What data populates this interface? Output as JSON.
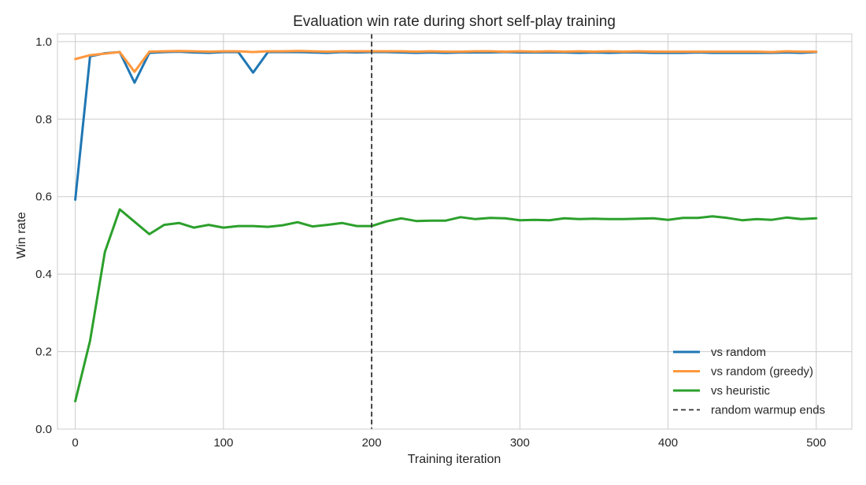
{
  "chart_data": {
    "type": "line",
    "title": "Evaluation win rate during short self-play training",
    "xlabel": "Training iteration",
    "ylabel": "Win rate",
    "xlim": [
      -12,
      524
    ],
    "ylim": [
      0.0,
      1.02
    ],
    "x_ticks": [
      0,
      100,
      200,
      300,
      400,
      500
    ],
    "y_ticks": [
      0.0,
      0.2,
      0.4,
      0.6,
      0.8,
      1.0
    ],
    "x_tick_labels": [
      "0",
      "100",
      "200",
      "300",
      "400",
      "500"
    ],
    "y_tick_labels": [
      "0.0",
      "0.2",
      "0.4",
      "0.6",
      "0.8",
      "1.0"
    ],
    "grid": true,
    "legend_position": "lower-right",
    "x": [
      0,
      10,
      20,
      30,
      40,
      50,
      60,
      70,
      80,
      90,
      100,
      110,
      120,
      130,
      140,
      150,
      160,
      170,
      180,
      190,
      200,
      210,
      220,
      230,
      240,
      250,
      260,
      270,
      280,
      290,
      300,
      310,
      320,
      330,
      340,
      350,
      360,
      370,
      380,
      390,
      400,
      410,
      420,
      430,
      440,
      450,
      460,
      470,
      480,
      490,
      500
    ],
    "series": [
      {
        "name": "vs random",
        "color": "#1f77b4",
        "values": [
          0.592,
          0.962,
          0.97,
          0.973,
          0.894,
          0.971,
          0.973,
          0.974,
          0.972,
          0.971,
          0.973,
          0.973,
          0.92,
          0.973,
          0.973,
          0.973,
          0.972,
          0.971,
          0.973,
          0.972,
          0.973,
          0.973,
          0.972,
          0.971,
          0.972,
          0.971,
          0.972,
          0.972,
          0.972,
          0.973,
          0.972,
          0.972,
          0.972,
          0.972,
          0.971,
          0.972,
          0.971,
          0.972,
          0.972,
          0.971,
          0.971,
          0.971,
          0.972,
          0.971,
          0.971,
          0.971,
          0.971,
          0.971,
          0.972,
          0.971,
          0.973
        ]
      },
      {
        "name": "vs random (greedy)",
        "color": "#ff983e",
        "values": [
          0.955,
          0.965,
          0.969,
          0.973,
          0.922,
          0.974,
          0.975,
          0.976,
          0.975,
          0.974,
          0.975,
          0.975,
          0.973,
          0.975,
          0.975,
          0.976,
          0.975,
          0.974,
          0.975,
          0.975,
          0.975,
          0.975,
          0.975,
          0.974,
          0.975,
          0.974,
          0.974,
          0.975,
          0.975,
          0.974,
          0.975,
          0.974,
          0.975,
          0.974,
          0.975,
          0.974,
          0.975,
          0.974,
          0.975,
          0.974,
          0.974,
          0.974,
          0.974,
          0.974,
          0.974,
          0.974,
          0.974,
          0.973,
          0.975,
          0.974,
          0.974
        ]
      },
      {
        "name": "vs heuristic",
        "color": "#2ca02c",
        "values": [
          0.072,
          0.228,
          0.457,
          0.567,
          0.535,
          0.503,
          0.527,
          0.532,
          0.52,
          0.527,
          0.52,
          0.524,
          0.524,
          0.522,
          0.526,
          0.534,
          0.523,
          0.527,
          0.532,
          0.524,
          0.524,
          0.536,
          0.544,
          0.537,
          0.538,
          0.538,
          0.547,
          0.542,
          0.545,
          0.544,
          0.539,
          0.54,
          0.539,
          0.544,
          0.542,
          0.543,
          0.542,
          0.542,
          0.543,
          0.544,
          0.54,
          0.545,
          0.545,
          0.549,
          0.545,
          0.539,
          0.542,
          0.54,
          0.546,
          0.542,
          0.544
        ]
      }
    ],
    "vline": {
      "x": 200,
      "label": "random warmup ends",
      "color": "#333333"
    }
  }
}
